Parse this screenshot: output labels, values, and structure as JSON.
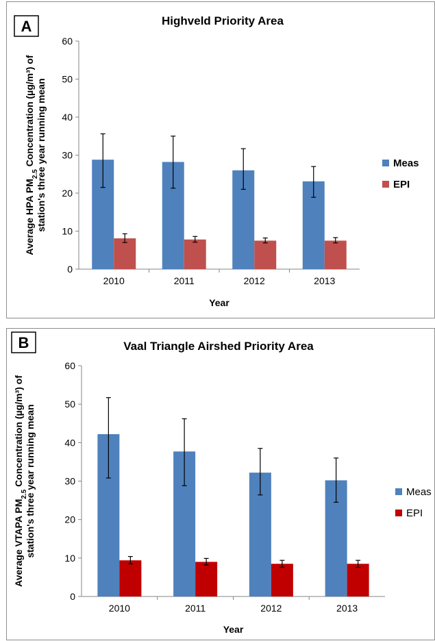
{
  "chart_data": [
    {
      "type": "bar",
      "panel_letter": "A",
      "title": "Highveld Priority Area",
      "xlabel": "Year",
      "ylabel_line1": "Average HPA PM",
      "ylabel_sub": "2.5",
      "ylabel_line1_rest": " Concentration (µg/m³) of",
      "ylabel_line2": "station's three year running mean",
      "categories": [
        "2010",
        "2011",
        "2012",
        "2013"
      ],
      "ylim": [
        0,
        60
      ],
      "yticks": [
        "0",
        "10",
        "20",
        "30",
        "40",
        "50",
        "60"
      ],
      "legend_position": "right",
      "legend_bold": true,
      "series": [
        {
          "name": "Meas",
          "color": "#4f81bd",
          "values": [
            28.8,
            28.2,
            26.0,
            23.1
          ],
          "err_low": [
            21.5,
            21.3,
            21.0,
            18.9
          ],
          "err_high": [
            35.6,
            35.0,
            31.7,
            27.0
          ]
        },
        {
          "name": "EPI",
          "color": "#c0504d",
          "values": [
            8.1,
            7.8,
            7.5,
            7.5
          ],
          "err_low": [
            7.0,
            7.1,
            6.9,
            6.9
          ],
          "err_high": [
            9.3,
            8.6,
            8.2,
            8.3
          ]
        }
      ]
    },
    {
      "type": "bar",
      "panel_letter": "B",
      "title": "Vaal Triangle Airshed Priority Area",
      "xlabel": "Year",
      "ylabel_line1": "Average VTAPA PM",
      "ylabel_sub": "2.5",
      "ylabel_line1_rest": " Concentration (µg/m³) of",
      "ylabel_line2": "station's three year running mean",
      "categories": [
        "2010",
        "2011",
        "2012",
        "2013"
      ],
      "ylim": [
        0,
        60
      ],
      "yticks": [
        "0",
        "10",
        "20",
        "30",
        "40",
        "50",
        "60"
      ],
      "legend_position": "right",
      "legend_bold": false,
      "series": [
        {
          "name": "Meas",
          "color": "#4f81bd",
          "values": [
            42.2,
            37.7,
            32.2,
            30.2
          ],
          "err_low": [
            30.8,
            28.8,
            26.4,
            24.5
          ],
          "err_high": [
            51.7,
            46.2,
            38.5,
            36.0
          ]
        },
        {
          "name": "EPI",
          "color": "#c00000",
          "values": [
            9.4,
            9.0,
            8.5,
            8.5
          ],
          "err_low": [
            8.5,
            8.2,
            7.6,
            7.6
          ],
          "err_high": [
            10.4,
            9.9,
            9.4,
            9.4
          ]
        }
      ]
    }
  ]
}
